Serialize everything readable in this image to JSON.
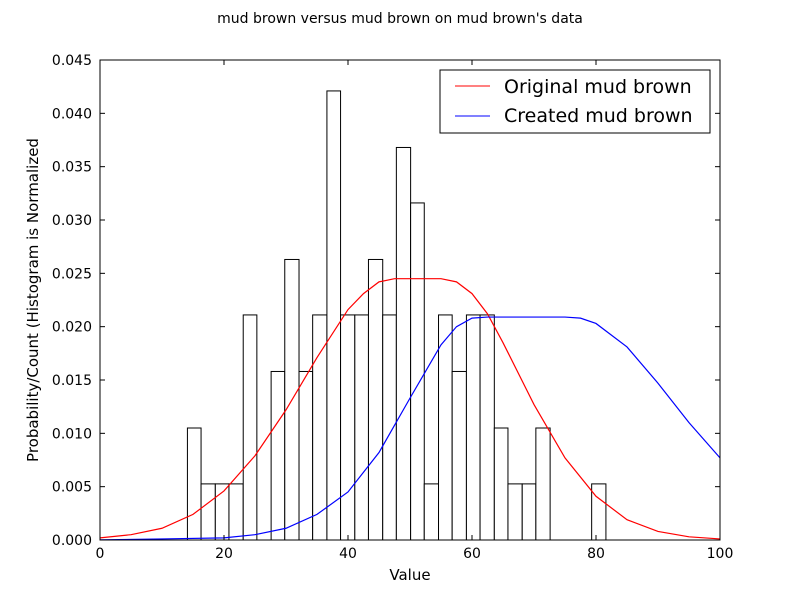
{
  "chart_data": {
    "type": "histogram",
    "title": "mud brown versus mud brown on mud brown's data",
    "xlabel": "Value",
    "ylabel": "Probability/Count (Histogram is Normalized",
    "xlim": [
      0,
      100
    ],
    "ylim": [
      0,
      0.045
    ],
    "xticks": [
      0,
      20,
      40,
      60,
      80,
      100
    ],
    "xtick_labels": [
      "0",
      "20",
      "40",
      "60",
      "80",
      "100"
    ],
    "yticks": [
      0,
      0.005,
      0.01,
      0.015,
      0.02,
      0.025,
      0.03,
      0.035,
      0.04,
      0.045
    ],
    "ytick_labels": [
      "0.000",
      "0.005",
      "0.010",
      "0.015",
      "0.020",
      "0.025",
      "0.030",
      "0.035",
      "0.040",
      "0.045"
    ],
    "grid": false,
    "legend_position": "top-right",
    "histogram": {
      "bin_edges": [
        14.1,
        16.3,
        18.6,
        20.8,
        23.1,
        25.3,
        27.6,
        29.8,
        32.1,
        34.3,
        36.6,
        38.8,
        41.1,
        43.3,
        45.6,
        47.8,
        50.1,
        52.3,
        54.6,
        56.8,
        59.1,
        61.3,
        63.6,
        65.8,
        68.1,
        70.3,
        72.6,
        74.8,
        77.1,
        79.3,
        81.6
      ],
      "values": [
        0.0105,
        0.00526,
        0.00526,
        0.00526,
        0.0211,
        0,
        0.0158,
        0.0263,
        0.0158,
        0.0211,
        0.0421,
        0.0211,
        0.0211,
        0.0263,
        0.0211,
        0.0368,
        0.0316,
        0.00526,
        0.0211,
        0.0158,
        0.0211,
        0.0211,
        0.0105,
        0.00526,
        0.00526,
        0.0105,
        0,
        0,
        0,
        0.00526
      ],
      "edge_color": "#000000",
      "fill_color": "#ffffff"
    },
    "series": [
      {
        "name": "Original mud brown",
        "color": "#ff0000",
        "x": [
          0,
          5,
          10,
          15,
          20,
          25,
          30,
          35,
          40,
          42.5,
          45,
          47.5,
          50,
          52.5,
          55,
          57.5,
          60,
          62.5,
          65,
          70,
          75,
          80,
          85,
          90,
          95,
          100
        ],
        "y": [
          0.0002,
          0.0005,
          0.0011,
          0.0024,
          0.0046,
          0.0079,
          0.0122,
          0.0171,
          0.0216,
          0.0231,
          0.0242,
          0.0245,
          0.0245,
          0.0245,
          0.0245,
          0.0242,
          0.0231,
          0.0212,
          0.0185,
          0.0127,
          0.0077,
          0.0041,
          0.0019,
          0.0008,
          0.0003,
          0.0001
        ]
      },
      {
        "name": "Created mud brown",
        "color": "#0000ff",
        "x": [
          0,
          10,
          20,
          25,
          30,
          35,
          40,
          45,
          50,
          55,
          57.5,
          60,
          62.5,
          65,
          70,
          75,
          77.5,
          80,
          85,
          90,
          95,
          100
        ],
        "y": [
          1e-05,
          0.0001,
          0.0002,
          0.0005,
          0.0011,
          0.0024,
          0.0045,
          0.0082,
          0.0133,
          0.0183,
          0.02,
          0.0208,
          0.0209,
          0.0209,
          0.0209,
          0.0209,
          0.0208,
          0.0203,
          0.0181,
          0.0147,
          0.011,
          0.0077
        ]
      }
    ]
  }
}
